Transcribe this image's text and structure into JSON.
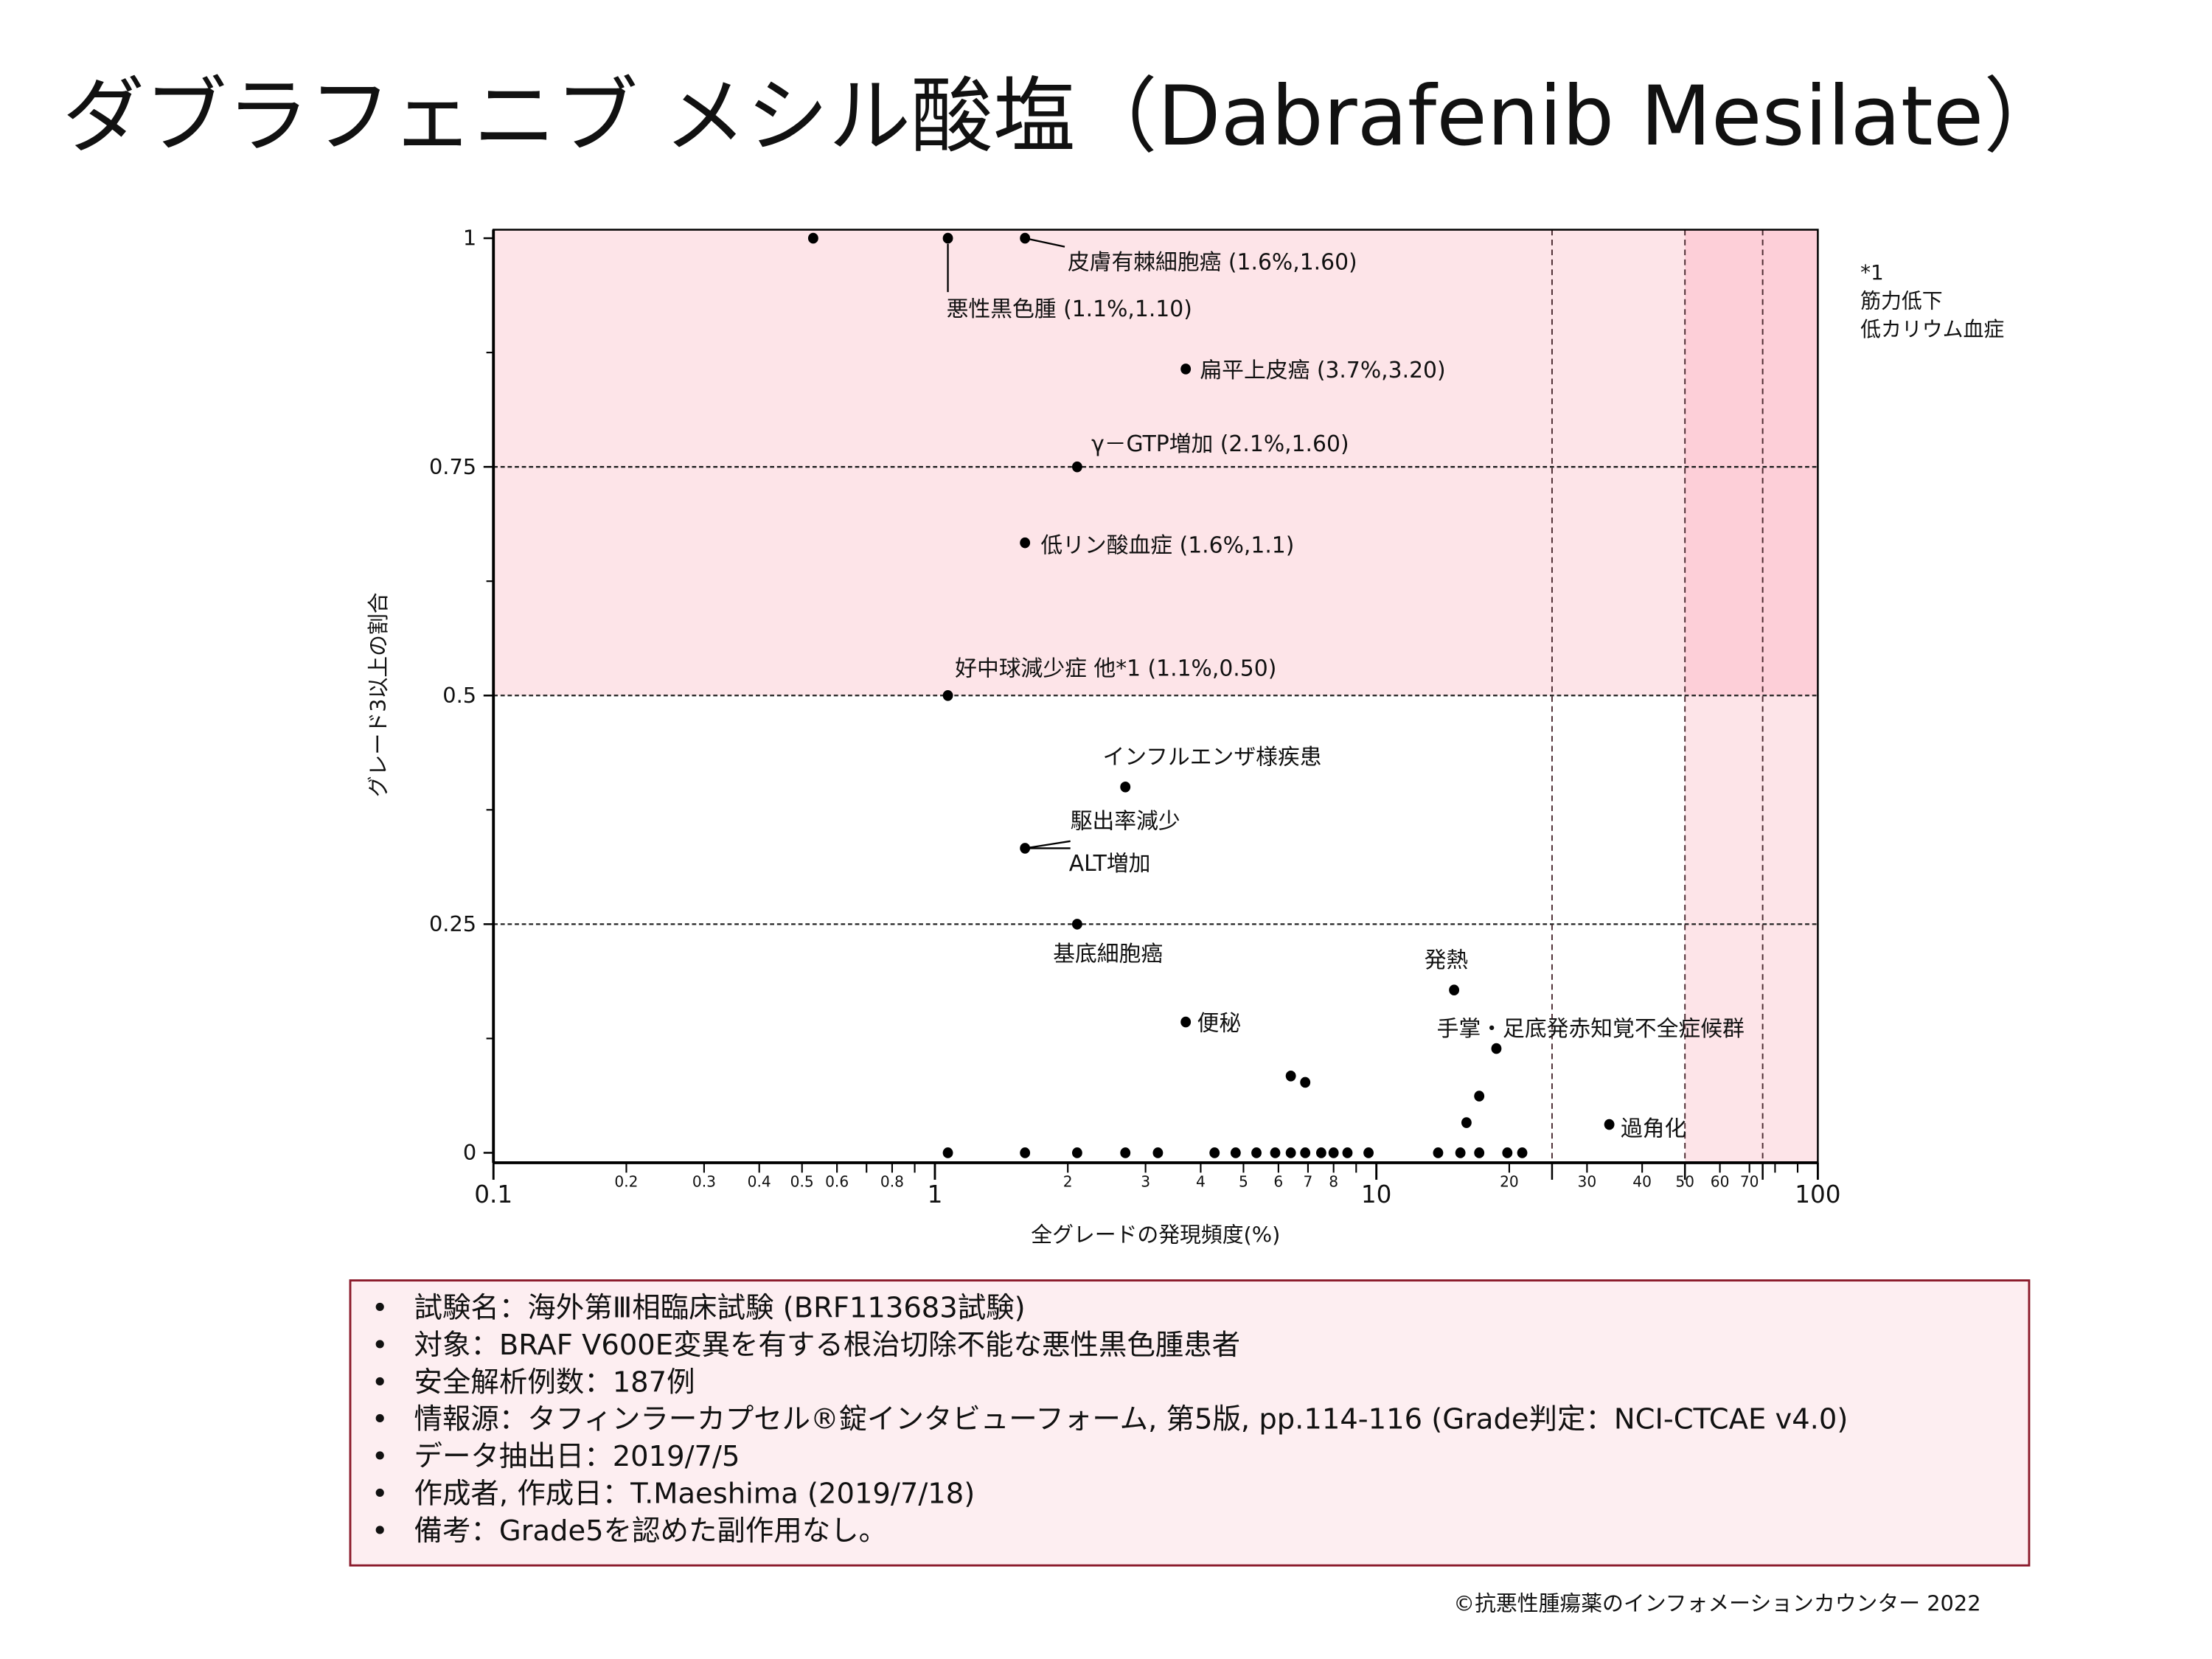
{
  "title": "ダブラフェニブ メシル酸塩（Dabrafenib Mesilate）",
  "chart_data": {
    "type": "scatter",
    "title": "ダブラフェニブ メシル酸塩（Dabrafenib Mesilate）",
    "xlabel": "全グレードの発現頻度(%)",
    "ylabel": "グレード3以上の割合",
    "xscale": "log",
    "xlim": [
      0.1,
      100
    ],
    "ylim": [
      0,
      1
    ],
    "x_major_ticks": [
      {
        "v": 0.1,
        "label": "0.1"
      },
      {
        "v": 1,
        "label": "1"
      },
      {
        "v": 10,
        "label": "10"
      },
      {
        "v": 100,
        "label": "100"
      }
    ],
    "x_minor_ticks": [
      {
        "v": 0.2,
        "label": "0.2"
      },
      {
        "v": 0.3,
        "label": "0.3"
      },
      {
        "v": 0.4,
        "label": "0.4"
      },
      {
        "v": 0.5,
        "label": "0.5"
      },
      {
        "v": 0.6,
        "label": "0.6"
      },
      {
        "v": 0.7,
        "label": ""
      },
      {
        "v": 0.8,
        "label": "0.8"
      },
      {
        "v": 0.9,
        "label": ""
      },
      {
        "v": 2,
        "label": "2"
      },
      {
        "v": 3,
        "label": "3"
      },
      {
        "v": 4,
        "label": "4"
      },
      {
        "v": 5,
        "label": "5"
      },
      {
        "v": 6,
        "label": "6"
      },
      {
        "v": 7,
        "label": "7"
      },
      {
        "v": 8,
        "label": "8"
      },
      {
        "v": 9,
        "label": ""
      },
      {
        "v": 20,
        "label": "20"
      },
      {
        "v": 30,
        "label": "30"
      },
      {
        "v": 40,
        "label": "40"
      },
      {
        "v": 50,
        "label": "50"
      },
      {
        "v": 60,
        "label": "60"
      },
      {
        "v": 70,
        "label": "70"
      },
      {
        "v": 80,
        "label": ""
      },
      {
        "v": 90,
        "label": ""
      }
    ],
    "y_ticks": [
      {
        "v": 0,
        "label": "0"
      },
      {
        "v": 0.25,
        "label": "0.25"
      },
      {
        "v": 0.5,
        "label": "0.5"
      },
      {
        "v": 0.75,
        "label": "0.75"
      },
      {
        "v": 1,
        "label": "1"
      }
    ],
    "y_minor_ticks": [
      0.125,
      0.375,
      0.625,
      0.875
    ],
    "h_reference_lines": [
      0.25,
      0.5,
      0.75
    ],
    "v_reference_lines": [
      25,
      50,
      75
    ],
    "shaded_regions": [
      {
        "name": "high-grade-ratio",
        "y_from": 0.5,
        "y_to": 1,
        "x_from": 0.1,
        "x_to": 100,
        "color": "#fde4e8"
      },
      {
        "name": "high-frequency",
        "y_from": 0,
        "y_to": 1,
        "x_from": 50,
        "x_to": 100,
        "color": "#fde4e8"
      },
      {
        "name": "overlap",
        "y_from": 0.5,
        "y_to": 1,
        "x_from": 50,
        "x_to": 100,
        "color": "#fdcfd8"
      }
    ],
    "grid": false,
    "points": [
      {
        "x": 0.53,
        "y": 1.0,
        "label": ""
      },
      {
        "x": 1.07,
        "y": 1.0,
        "label": "悪性黒色腫 (1.1%,1.10)"
      },
      {
        "x": 1.6,
        "y": 1.0,
        "label": "皮膚有棘細胞癌 (1.6%,1.60)"
      },
      {
        "x": 3.7,
        "y": 0.857,
        "label": "扁平上皮癌 (3.7%,3.20)"
      },
      {
        "x": 2.1,
        "y": 0.75,
        "label": "γ－GTP増加 (2.1%,1.60)"
      },
      {
        "x": 1.6,
        "y": 0.667,
        "label": "低リン酸血症 (1.6%,1.1)"
      },
      {
        "x": 1.07,
        "y": 0.5,
        "label": "好中球減少症 他*1 (1.1%,0.50)"
      },
      {
        "x": 2.7,
        "y": 0.4,
        "label": "インフルエンザ様疾患"
      },
      {
        "x": 1.6,
        "y": 0.333,
        "label": "駆出率減少 / ALT増加"
      },
      {
        "x": 2.1,
        "y": 0.25,
        "label": "基底細胞癌"
      },
      {
        "x": 3.7,
        "y": 0.143,
        "label": "便秘"
      },
      {
        "x": 15.0,
        "y": 0.178,
        "label": "発熱"
      },
      {
        "x": 18.7,
        "y": 0.114,
        "label": "手掌・足底発赤知覚不全症候群"
      },
      {
        "x": 6.4,
        "y": 0.084,
        "label": ""
      },
      {
        "x": 6.9,
        "y": 0.077,
        "label": ""
      },
      {
        "x": 17.1,
        "y": 0.062,
        "label": ""
      },
      {
        "x": 16.0,
        "y": 0.033,
        "label": ""
      },
      {
        "x": 33.7,
        "y": 0.031,
        "label": "過角化"
      },
      {
        "x": 1.07,
        "y": 0,
        "label": ""
      },
      {
        "x": 1.6,
        "y": 0,
        "label": ""
      },
      {
        "x": 2.1,
        "y": 0,
        "label": ""
      },
      {
        "x": 2.7,
        "y": 0,
        "label": ""
      },
      {
        "x": 3.2,
        "y": 0,
        "label": ""
      },
      {
        "x": 4.3,
        "y": 0,
        "label": ""
      },
      {
        "x": 4.8,
        "y": 0,
        "label": ""
      },
      {
        "x": 5.35,
        "y": 0,
        "label": ""
      },
      {
        "x": 5.9,
        "y": 0,
        "label": ""
      },
      {
        "x": 6.4,
        "y": 0,
        "label": ""
      },
      {
        "x": 6.9,
        "y": 0,
        "label": ""
      },
      {
        "x": 7.5,
        "y": 0,
        "label": ""
      },
      {
        "x": 8.0,
        "y": 0,
        "label": ""
      },
      {
        "x": 8.6,
        "y": 0,
        "label": ""
      },
      {
        "x": 9.6,
        "y": 0,
        "label": ""
      },
      {
        "x": 13.8,
        "y": 0,
        "label": ""
      },
      {
        "x": 15.5,
        "y": 0,
        "label": ""
      },
      {
        "x": 17.1,
        "y": 0,
        "label": ""
      },
      {
        "x": 19.8,
        "y": 0,
        "label": ""
      },
      {
        "x": 21.4,
        "y": 0,
        "label": ""
      }
    ],
    "annotations": [
      {
        "text": "皮膚有棘細胞癌 (1.6%,1.60)",
        "x": 1.6,
        "y": 1.0,
        "leader": true
      },
      {
        "text": "悪性黒色腫 (1.1%,1.10)",
        "x": 1.07,
        "y": 1.0,
        "leader": true
      },
      {
        "text": "扁平上皮癌 (3.7%,3.20)",
        "x": 3.7,
        "y": 0.857,
        "leader": false
      },
      {
        "text": "γ－GTP増加 (2.1%,1.60)",
        "x": 2.1,
        "y": 0.75,
        "leader": false
      },
      {
        "text": "低リン酸血症 (1.6%,1.1)",
        "x": 1.6,
        "y": 0.667,
        "leader": false
      },
      {
        "text": "好中球減少症 他*1 (1.1%,0.50)",
        "x": 1.07,
        "y": 0.5,
        "leader": false
      },
      {
        "text": "インフルエンザ様疾患",
        "x": 2.7,
        "y": 0.4,
        "leader": false
      },
      {
        "text": "駆出率減少",
        "x": 1.6,
        "y": 0.333,
        "leader": true
      },
      {
        "text": "ALT増加",
        "x": 1.6,
        "y": 0.333,
        "leader": true
      },
      {
        "text": "基底細胞癌",
        "x": 2.1,
        "y": 0.25,
        "leader": false
      },
      {
        "text": "便秘",
        "x": 3.7,
        "y": 0.143,
        "leader": false
      },
      {
        "text": "発熱",
        "x": 15.0,
        "y": 0.178,
        "leader": false
      },
      {
        "text": "手掌・足底発赤知覚不全症候群",
        "x": 18.7,
        "y": 0.114,
        "leader": false
      },
      {
        "text": "過角化",
        "x": 33.7,
        "y": 0.031,
        "leader": false
      }
    ],
    "footnote": [
      "*1",
      "筋力低下",
      "低カリウム血症"
    ]
  },
  "info_box": {
    "bullet": "•",
    "items": [
      "試験名：海外第Ⅲ相臨床試験 (BRF113683試験)",
      "対象：BRAF V600E変異を有する根治切除不能な悪性黒色腫患者",
      "安全解析例数：187例",
      "情報源：タフィンラーカプセル®錠インタビューフォーム, 第5版, pp.114-116 (Grade判定：NCI-CTCAE v4.0)",
      "データ抽出日：2019/7/5",
      "作成者, 作成日：T.Maeshima (2019/7/18)",
      "備考：Grade5を認めた副作用なし。"
    ],
    "border_color": "#8b1a2b",
    "background": "#fdeef1"
  },
  "copyright": "©抗悪性腫瘍薬のインフォメーションカウンター  2022"
}
